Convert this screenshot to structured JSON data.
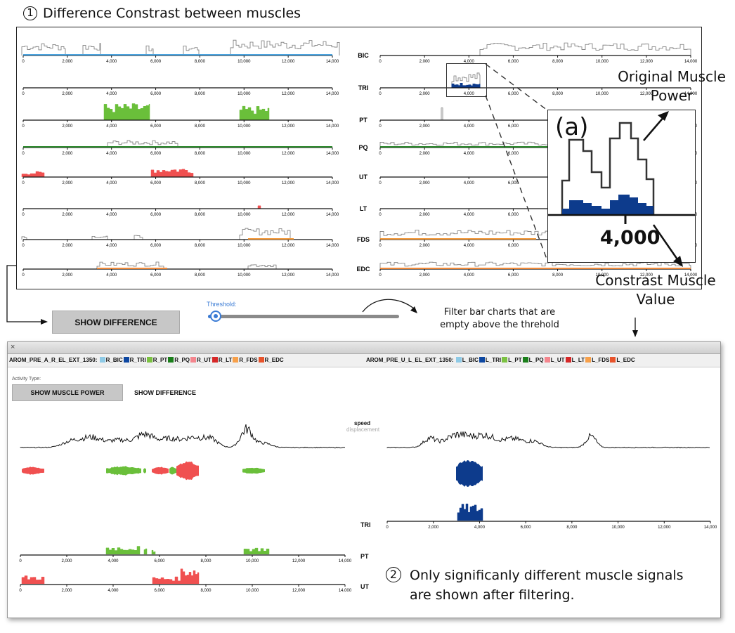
{
  "top": {
    "step_number": "1",
    "title": "Difference Constrast between muscles",
    "muscles": [
      "BIC",
      "TRI",
      "PT",
      "PQ",
      "UT",
      "LT",
      "FDS",
      "EDC"
    ],
    "ticks": [
      "0",
      "2,000",
      "4,000",
      "6,000",
      "8,000",
      "10,000",
      "12,000",
      "14,000"
    ]
  },
  "zoom": {
    "label": "(a)",
    "tick_label": "4,000",
    "upper_note": "Original Muscle\nPower",
    "lower_note": "Constrast Muscle\nValue"
  },
  "controls": {
    "show_difference_label": "SHOW DIFFERENCE",
    "threshold_label": "Threshold:",
    "filter_note": "Filter bar charts that are\nempty above the threhold"
  },
  "window": {
    "close_glyph": "×",
    "left_legend_title": "AROM_PRE_A_R_EL_EXT_1350:",
    "right_legend_title": "AROM_PRE_U_L_EL_EXT_1350:",
    "left_legend_items": [
      "R_BIC",
      "R_TRI",
      "R_PT",
      "R_PQ",
      "R_UT",
      "R_LT",
      "R_FDS",
      "R_EDC"
    ],
    "right_legend_items": [
      "L_BIC",
      "L_TRI",
      "L_PT",
      "L_PQ",
      "L_UT",
      "L_LT",
      "L_FDS",
      "L_EDC"
    ],
    "legend_colors": [
      "#8ecae6",
      "#0d47a1",
      "#7cc242",
      "#1b7f1b",
      "#f4868e",
      "#d62828",
      "#f7a04a",
      "#e8542c"
    ],
    "activity_type_label": "Activity Type:",
    "show_muscle_power_label": "SHOW MUSCLE POWER",
    "show_difference_label": "SHOW DIFFERENCE",
    "speed_label": "speed",
    "displacement_label": "displacement",
    "chart_labels": [
      "TRI",
      "PT",
      "UT"
    ],
    "ticks": [
      "0",
      "2,000",
      "4,000",
      "6,000",
      "8,000",
      "10,000",
      "12,000",
      "14,000"
    ]
  },
  "bottom_note": {
    "step_number": "2",
    "text": "Only significanly different muscle signals\nare shown after filtering."
  },
  "colors": {
    "bic": "#4aa3df",
    "tri": "#0d3b8c",
    "pt": "#6abf3a",
    "pq": "#2e8b2e",
    "ut": "#f05050",
    "fds": "#f59a3a",
    "edc": "#f08a3a"
  }
}
